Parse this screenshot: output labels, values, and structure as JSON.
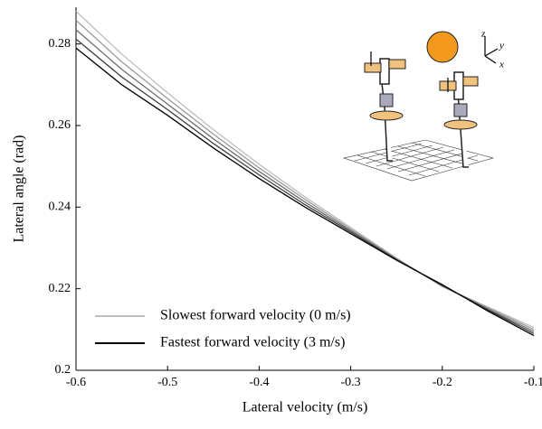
{
  "chart_data": {
    "type": "line",
    "x_label": "Lateral velocity (m/s)",
    "y_label": "Lateral angle (rad)",
    "x": [
      -0.6,
      -0.55,
      -0.5,
      -0.45,
      -0.4,
      -0.35,
      -0.3,
      -0.25,
      -0.2,
      -0.15,
      -0.1
    ],
    "series": [
      {
        "name": "Slowest forward velocity (0 m/s)",
        "color": "#bdbdbd",
        "values": [
          0.288,
          0.2775,
          0.268,
          0.259,
          0.2505,
          0.2425,
          0.235,
          0.2275,
          0.2205,
          0.2155,
          0.2105
        ]
      },
      {
        "color": "#9a9a9a",
        "values": [
          0.2858,
          0.2756,
          0.2666,
          0.2579,
          0.2496,
          0.2419,
          0.2346,
          0.2274,
          0.2206,
          0.2153,
          0.21
        ]
      },
      {
        "color": "#6e6e6e",
        "values": [
          0.2835,
          0.27375,
          0.26525,
          0.25675,
          0.24875,
          0.24125,
          0.23425,
          0.22725,
          0.22075,
          0.215,
          0.2095
        ]
      },
      {
        "color": "#3c3c3c",
        "values": [
          0.2812,
          0.2719,
          0.2639,
          0.2556,
          0.2479,
          0.2406,
          0.2339,
          0.2271,
          0.2208,
          0.2148,
          0.209
        ]
      },
      {
        "name": "Fastest forward velocity (3 m/s)",
        "color": "#000000",
        "values": [
          0.279,
          0.27,
          0.2625,
          0.2545,
          0.247,
          0.24,
          0.2335,
          0.227,
          0.221,
          0.2145,
          0.2085
        ]
      }
    ],
    "xlim": [
      -0.6,
      -0.1
    ],
    "xticks": [
      -0.6,
      -0.5,
      -0.4,
      -0.3,
      -0.2,
      -0.1
    ],
    "ylim": [
      0.2,
      0.289
    ],
    "yticks": [
      0.2,
      0.22,
      0.24,
      0.26,
      0.28
    ],
    "grid": false,
    "legend": "lower left"
  }
}
